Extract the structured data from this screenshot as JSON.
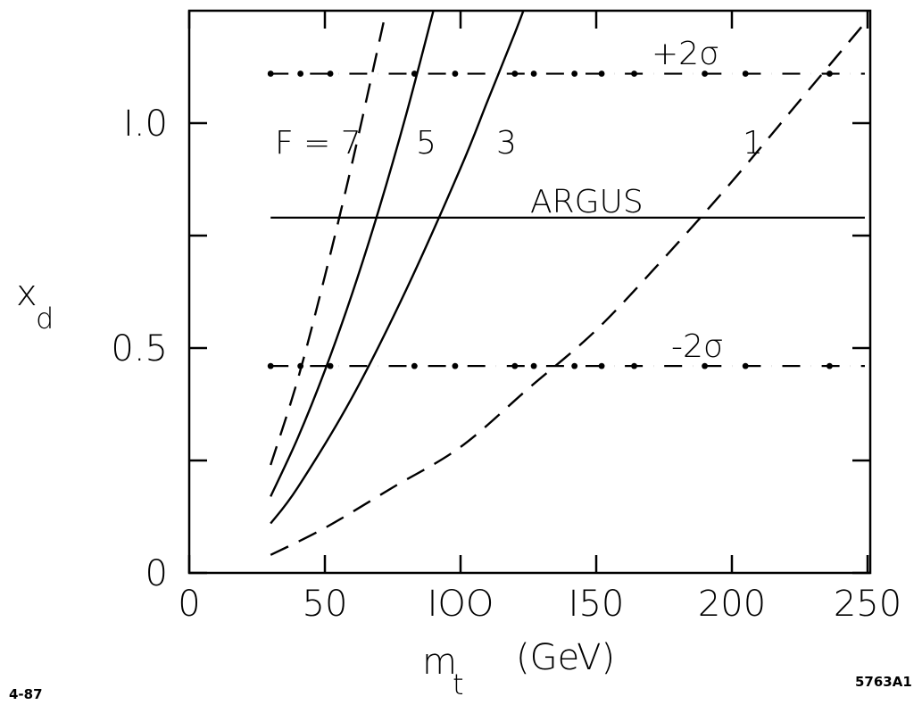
{
  "chart_data": {
    "type": "line",
    "xlabel": "m",
    "xlabel_sub": "t",
    "xunit": "(GeV)",
    "ylabel": "x",
    "ylabel_sub": "d",
    "xlim": [
      0,
      250
    ],
    "ylim": [
      0,
      1.25
    ],
    "x_ticks": [
      0,
      50,
      100,
      150,
      200,
      250
    ],
    "x_tick_labels": [
      "0",
      "50",
      "IOO",
      "I50",
      "200",
      "250"
    ],
    "y_ticks": [
      0,
      0.25,
      0.5,
      0.75,
      1.0
    ],
    "y_tick_labels": [
      "0",
      "",
      "0.5",
      "",
      "I.0"
    ],
    "grid": false,
    "series": [
      {
        "name": "F = 7",
        "label": "F = 7",
        "style": "dashed",
        "x": [
          30,
          40,
          50,
          60,
          70,
          74
        ],
        "y": [
          0.24,
          0.43,
          0.66,
          0.91,
          1.18,
          1.29
        ]
      },
      {
        "name": "5",
        "label": "5",
        "style": "solid",
        "x": [
          30,
          40,
          50,
          60,
          70,
          80,
          90,
          93
        ],
        "y": [
          0.17,
          0.3,
          0.45,
          0.62,
          0.81,
          1.02,
          1.25,
          1.32
        ]
      },
      {
        "name": "3",
        "label": "3",
        "style": "solid",
        "x": [
          30,
          40,
          60,
          80,
          100,
          110,
          120,
          125
        ],
        "y": [
          0.11,
          0.19,
          0.39,
          0.63,
          0.9,
          1.05,
          1.2,
          1.28
        ]
      },
      {
        "name": "1",
        "label": "1",
        "style": "dashed",
        "x": [
          30,
          50,
          75,
          100,
          125,
          150,
          175,
          200,
          225,
          250
        ],
        "y": [
          0.04,
          0.1,
          0.19,
          0.28,
          0.41,
          0.54,
          0.7,
          0.87,
          1.05,
          1.23
        ]
      }
    ],
    "reference_lines": [
      {
        "name": "+2σ",
        "label": "+2σ",
        "y": 1.11,
        "style": "dashdot"
      },
      {
        "name": "ARGUS",
        "label": "ARGUS",
        "y": 0.79,
        "style": "solid"
      },
      {
        "name": "-2σ",
        "label": "-2σ",
        "y": 0.46,
        "style": "dashdot"
      }
    ],
    "annotations": {
      "left_corner": "4-87",
      "right_corner": "5763A1"
    }
  }
}
